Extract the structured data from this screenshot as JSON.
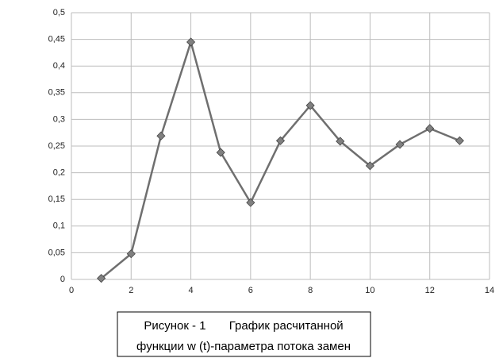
{
  "chart_data": {
    "type": "line",
    "x": [
      1,
      2,
      3,
      4,
      5,
      6,
      7,
      8,
      9,
      10,
      11,
      12,
      13
    ],
    "values": [
      0.002,
      0.048,
      0.269,
      0.445,
      0.238,
      0.144,
      0.26,
      0.326,
      0.259,
      0.213,
      0.253,
      0.283,
      0.26
    ],
    "color": "#6f6f6f",
    "marker_color": "#808080",
    "xlim": [
      0,
      14
    ],
    "xticks": [
      0,
      2,
      4,
      6,
      8,
      10,
      12,
      14
    ],
    "ylim": [
      0,
      0.5
    ],
    "yticks": [
      0,
      {
        "value": 0.05,
        "label": "0,05"
      },
      {
        "value": 0.1,
        "label": "0,1"
      },
      {
        "value": 0.15,
        "label": "0,15"
      },
      {
        "value": 0.2,
        "label": "0,2"
      },
      {
        "value": 0.25,
        "label": "0,25"
      },
      {
        "value": 0.3,
        "label": "0,3"
      },
      {
        "value": 0.35,
        "label": "0,35"
      },
      {
        "value": 0.4,
        "label": "0,4"
      },
      {
        "value": 0.45,
        "label": "0,45"
      },
      {
        "value": 0.5,
        "label": "0,5"
      }
    ],
    "grid": true,
    "caption": [
      "Рисунок - 1       График расчитанной",
      "функции w (t)-параметра потока замен"
    ]
  }
}
